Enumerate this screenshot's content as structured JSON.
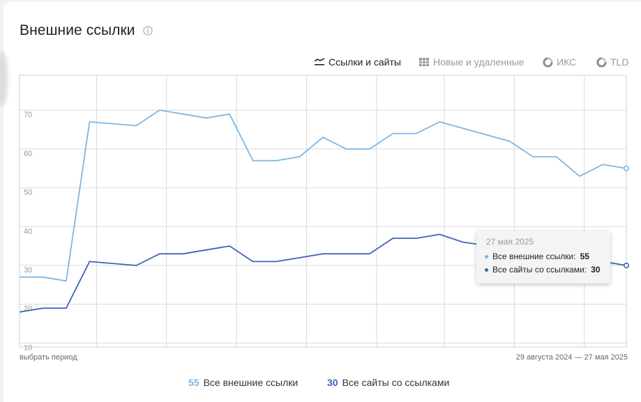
{
  "title": "Внешние ссылки",
  "tabs": [
    {
      "label": "Ссылки и сайты",
      "icon": "line-chart-icon",
      "active": true
    },
    {
      "label": "Новые и удаленные",
      "icon": "bar-chart-icon",
      "active": false
    },
    {
      "label": "ИКС",
      "icon": "pie-chart-icon",
      "active": false
    },
    {
      "label": "TLD",
      "icon": "pie-chart-icon",
      "active": false
    }
  ],
  "period_link": "выбрать период",
  "period_range": "29 августа 2024 — 27 мая 2025",
  "tooltip": {
    "date": "27 мая 2025",
    "rows": [
      {
        "label": "Все внешние ссылки:",
        "value": "55"
      },
      {
        "label": "Все сайты со ссылками:",
        "value": "30"
      }
    ]
  },
  "legend": [
    {
      "value": "55",
      "label": "Все внешние ссылки"
    },
    {
      "value": "30",
      "label": "Все сайты со ссылками"
    }
  ],
  "colors": {
    "links": "#7db6e3",
    "sites": "#4062b8",
    "grid": "#d9d9d9"
  },
  "chart_data": {
    "type": "line",
    "ylim": [
      9,
      79
    ],
    "yticks": [
      10,
      20,
      30,
      40,
      50,
      60,
      70
    ],
    "grid": true,
    "legend_position": "bottom",
    "x_count": 29,
    "series": [
      {
        "name": "Все внешние ссылки",
        "values": [
          27,
          27,
          26,
          67,
          66,
          70,
          68,
          69,
          57,
          57,
          58,
          63,
          60,
          60,
          64,
          64,
          67,
          62,
          58,
          58,
          53,
          56,
          55
        ],
        "x": [
          0,
          1,
          2,
          3,
          5,
          6,
          8,
          9,
          10,
          11,
          12,
          13,
          14,
          15,
          16,
          17,
          18,
          21,
          22,
          23,
          24,
          25,
          26
        ]
      },
      {
        "name": "Все сайты со ссылками",
        "values": [
          18,
          19,
          19,
          31,
          30,
          33,
          33,
          34,
          35,
          31,
          31,
          32,
          33,
          33,
          33,
          37,
          37,
          38,
          36,
          31,
          30
        ],
        "x": [
          0,
          1,
          2,
          3,
          5,
          6,
          7,
          8,
          9,
          10,
          11,
          12,
          13,
          14,
          15,
          16,
          17,
          18,
          19,
          25,
          26
        ]
      }
    ]
  }
}
